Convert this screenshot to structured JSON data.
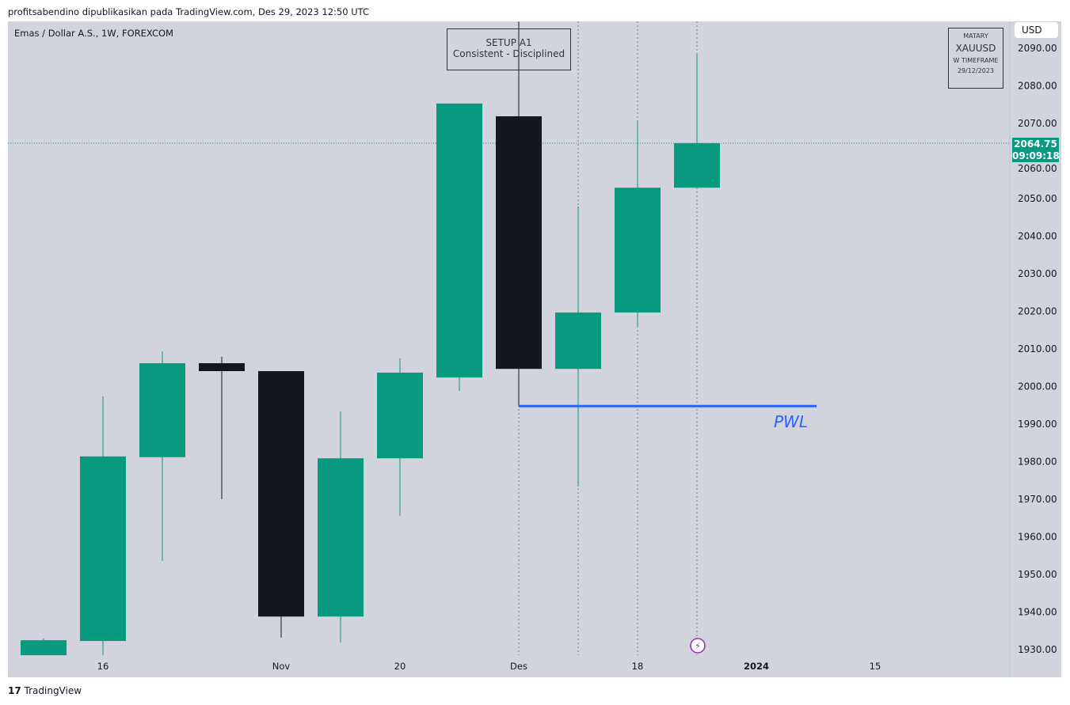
{
  "header": {
    "published": "profitsabendino dipublikasikan pada TradingView.com, Des 29, 2023 12:50 UTC"
  },
  "symbol_title": "Emas / Dollar A.S., 1W, FOREXCOM",
  "currency_button": "USD",
  "setup_box": {
    "line1": "SETUP A1",
    "line2": "Consistent - Disciplined"
  },
  "info_box": {
    "line1": "MATARY",
    "line2": "XAUUSD",
    "line3": "W TIMEFRAME",
    "line4": "29/12/2023"
  },
  "last_price": {
    "price": "2064.75",
    "countdown": "09:09:18"
  },
  "pwl_label": "PWL",
  "footer": "TradingView",
  "colors": {
    "up": "#089981",
    "down": "#131722",
    "pwl": "#2962ff",
    "background": "#d1d4dc"
  },
  "chart_data": {
    "type": "candlestick",
    "ylim": [
      1927,
      2092
    ],
    "y_ticks": [
      "1930.00",
      "1940.00",
      "1950.00",
      "1960.00",
      "1970.00",
      "1980.00",
      "1990.00",
      "2000.00",
      "2010.00",
      "2020.00",
      "2030.00",
      "2040.00",
      "2050.00",
      "2060.00",
      "2070.00",
      "2080.00",
      "2090.00"
    ],
    "x_ticks": [
      {
        "label": "16",
        "bar": 1
      },
      {
        "label": "Nov",
        "bar": 4
      },
      {
        "label": "20",
        "bar": 6
      },
      {
        "label": "Des",
        "bar": 8
      },
      {
        "label": "18",
        "bar": 10
      },
      {
        "label": "2024",
        "bar": 12
      },
      {
        "label": "15",
        "bar": 14
      }
    ],
    "candles": [
      {
        "o": 1928.5,
        "h": 1933.0,
        "l": 1928.5,
        "c": 1932.5
      },
      {
        "o": 1932.3,
        "h": 1997.4,
        "l": 1928.5,
        "c": 1981.4
      },
      {
        "o": 1981.2,
        "h": 2009.4,
        "l": 1953.6,
        "c": 2006.2
      },
      {
        "o": 2006.2,
        "h": 2007.9,
        "l": 1970.0,
        "c": 2004.1
      },
      {
        "o": 2004.1,
        "h": 2004.1,
        "l": 1933.2,
        "c": 1938.8
      },
      {
        "o": 1938.8,
        "h": 1993.4,
        "l": 1931.9,
        "c": 1980.9
      },
      {
        "o": 1980.9,
        "h": 2007.5,
        "l": 1965.6,
        "c": 2003.7
      },
      {
        "o": 2002.4,
        "h": 2075.3,
        "l": 1998.8,
        "c": 2075.3
      },
      {
        "o": 2071.9,
        "h": 2097.0,
        "l": 1994.8,
        "c": 2004.7
      },
      {
        "o": 2004.7,
        "h": 2047.9,
        "l": 1973.4,
        "c": 2019.7
      },
      {
        "o": 2019.7,
        "h": 2070.6,
        "l": 2016.1,
        "c": 2052.9
      },
      {
        "o": 2052.9,
        "h": 2088.5,
        "l": 2052.9,
        "c": 2064.75
      }
    ],
    "pwl": {
      "price": 1994.8,
      "from_bar": 8,
      "to_bar": 13
    },
    "dotted_vertical_bars": [
      8,
      9,
      10,
      11
    ],
    "last_price_line": 2064.75
  }
}
